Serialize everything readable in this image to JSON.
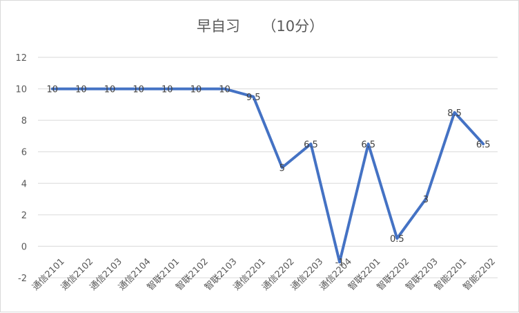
{
  "chart_data": {
    "type": "line",
    "title": "早自习　　（10分）",
    "xlabel": "",
    "ylabel": "",
    "ylim": [
      -2,
      12
    ],
    "yticks": [
      -2,
      0,
      2,
      4,
      6,
      8,
      10,
      12
    ],
    "ytick_labels": [
      "-2",
      "0",
      "2",
      "4",
      "6",
      "8",
      "10",
      "12"
    ],
    "grid": true,
    "legend": "none",
    "series_color": "#4472C4",
    "gridline_color": "#d9d9d9",
    "categories": [
      "通信2101",
      "通信2102",
      "通信2103",
      "通信2104",
      "智联2101",
      "智联2102",
      "智联2103",
      "通信2201",
      "通信2202",
      "通信2203",
      "通信2204",
      "智联2201",
      "智联2202",
      "智联2203",
      "智能2201",
      "智能2202"
    ],
    "series": [
      {
        "values": [
          10,
          10,
          10,
          10,
          10,
          10,
          10,
          9.5,
          5,
          6.5,
          -1,
          6.5,
          0.5,
          3,
          8.5,
          6.5
        ],
        "labels": [
          "10",
          "10",
          "10",
          "10",
          "10",
          "10",
          "10",
          "9.5",
          "5",
          "6.5",
          "-1",
          "6.5",
          "0.5",
          "3",
          "8.5",
          "6.5"
        ]
      }
    ]
  }
}
